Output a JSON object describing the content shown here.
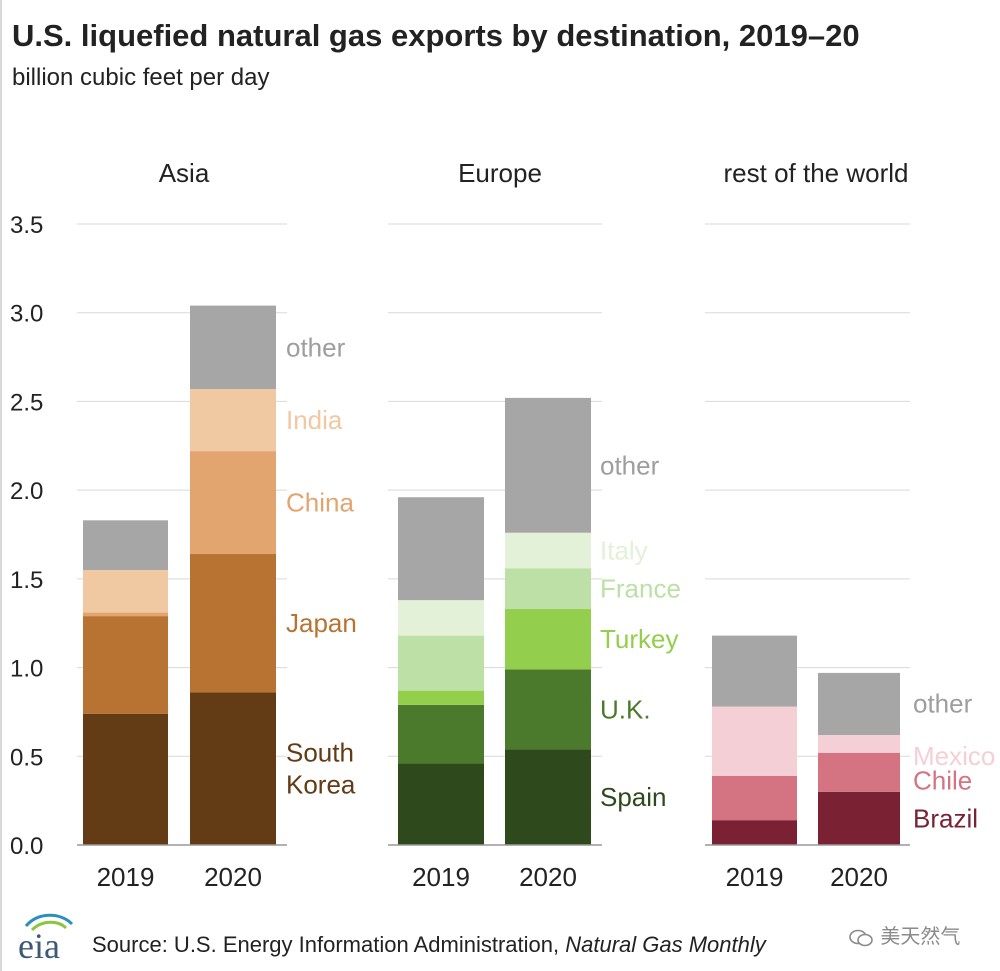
{
  "title": "U.S. liquefied natural gas exports by destination, 2019–20",
  "subtitle": "billion cubic feet per day",
  "source_prefix": "Source: U.S. Energy Information Administration, ",
  "source_publication": "Natural Gas Monthly",
  "logo_text": "eia",
  "watermark": "美天然气",
  "colors": {
    "grid": "#d9d9d9",
    "axis": "#999999",
    "text": "#222222"
  },
  "chart_data": {
    "type": "bar",
    "stacked": true,
    "title": "U.S. liquefied natural gas exports by destination, 2019–20",
    "ylabel": "billion cubic feet per day",
    "ylim": [
      0,
      3.5
    ],
    "yticks": [
      "0.0",
      "0.5",
      "1.0",
      "1.5",
      "2.0",
      "2.5",
      "3.0",
      "3.5"
    ],
    "grid": true,
    "categories": [
      "2019",
      "2020"
    ],
    "panels": [
      {
        "name": "Asia",
        "series": [
          {
            "name": "South Korea",
            "label_lines": [
              "South",
              "Korea"
            ],
            "color": "#633b14",
            "values": [
              0.74,
              0.86
            ]
          },
          {
            "name": "Japan",
            "label_lines": [
              "Japan"
            ],
            "color": "#b87333",
            "values": [
              0.55,
              0.78
            ]
          },
          {
            "name": "China",
            "label_lines": [
              "China"
            ],
            "color": "#e3a56f",
            "values": [
              0.02,
              0.58
            ]
          },
          {
            "name": "India",
            "label_lines": [
              "India"
            ],
            "color": "#f0c8a2",
            "values": [
              0.24,
              0.35
            ]
          },
          {
            "name": "other",
            "label_lines": [
              "other"
            ],
            "color": "#a6a6a6",
            "values": [
              0.28,
              0.47
            ]
          }
        ]
      },
      {
        "name": "Europe",
        "series": [
          {
            "name": "Spain",
            "label_lines": [
              "Spain"
            ],
            "color": "#2e4a1c",
            "values": [
              0.46,
              0.54
            ]
          },
          {
            "name": "U.K.",
            "label_lines": [
              "U.K."
            ],
            "color": "#4b7a2c",
            "values": [
              0.33,
              0.45
            ]
          },
          {
            "name": "Turkey",
            "label_lines": [
              "Turkey"
            ],
            "color": "#93cf4c",
            "values": [
              0.08,
              0.34
            ]
          },
          {
            "name": "France",
            "label_lines": [
              "France"
            ],
            "color": "#bde0a6",
            "values": [
              0.31,
              0.23
            ]
          },
          {
            "name": "Italy",
            "label_lines": [
              "Italy"
            ],
            "color": "#e2f1d7",
            "values": [
              0.2,
              0.2
            ]
          },
          {
            "name": "other",
            "label_lines": [
              "other"
            ],
            "color": "#a6a6a6",
            "values": [
              0.58,
              0.76
            ]
          }
        ]
      },
      {
        "name": "rest of the world",
        "series": [
          {
            "name": "Brazil",
            "label_lines": [
              "Brazil"
            ],
            "color": "#7a2233",
            "values": [
              0.14,
              0.3
            ]
          },
          {
            "name": "Chile",
            "label_lines": [
              "Chile"
            ],
            "color": "#d47482",
            "values": [
              0.25,
              0.22
            ]
          },
          {
            "name": "Mexico",
            "label_lines": [
              "Mexico"
            ],
            "color": "#f4d0d6",
            "values": [
              0.39,
              0.1
            ]
          },
          {
            "name": "other",
            "label_lines": [
              "other"
            ],
            "color": "#a6a6a6",
            "values": [
              0.4,
              0.35
            ]
          }
        ]
      }
    ]
  }
}
